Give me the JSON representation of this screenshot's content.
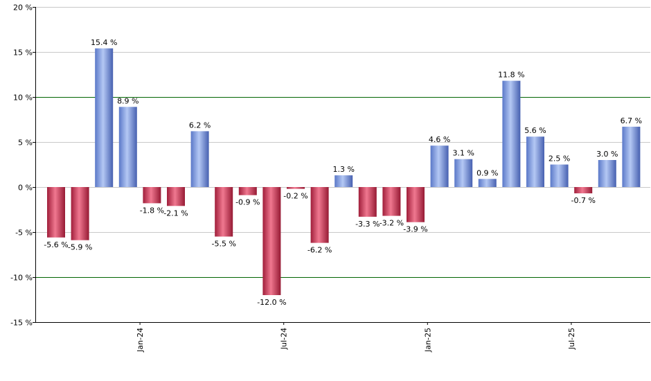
{
  "chart_data": {
    "type": "bar",
    "title": "",
    "xlabel": "",
    "ylabel": "",
    "ylim": [
      -15,
      20
    ],
    "yticks": [
      20,
      15,
      10,
      5,
      0,
      -5,
      -10,
      -15
    ],
    "y_tick_suffix": " %",
    "x_tick_labels": [
      {
        "label": "Jan-24",
        "after_index": 3
      },
      {
        "label": "Jul-24",
        "after_index": 9
      },
      {
        "label": "Jan-25",
        "after_index": 15
      },
      {
        "label": "Jul-25",
        "after_index": 21
      }
    ],
    "values": [
      -5.6,
      -5.9,
      15.4,
      8.9,
      -1.8,
      -2.1,
      6.2,
      -5.5,
      -0.9,
      -12.0,
      -0.2,
      -6.2,
      1.3,
      -3.3,
      -3.2,
      -3.9,
      4.6,
      3.1,
      0.9,
      11.8,
      5.6,
      2.5,
      -0.7,
      3.0,
      6.7
    ],
    "value_labels": [
      "-5.6 %",
      "-5.9 %",
      "15.4 %",
      "8.9 %",
      "-1.8 %",
      "-2.1 %",
      "6.2 %",
      "-5.5 %",
      "-0.9 %",
      "-12.0 %",
      "-0.2 %",
      "-6.2 %",
      "1.3 %",
      "-3.3 %",
      "-3.2 %",
      "-3.9 %",
      "4.6 %",
      "3.1 %",
      "0.9 %",
      "11.8 %",
      "5.6 %",
      "2.5 %",
      "-0.7 %",
      "3.0 %",
      "6.7 %"
    ],
    "grid": true,
    "highlight_gridlines": [
      10,
      -10
    ],
    "colors": {
      "positive": "#7a96dc",
      "negative": "#c8324a",
      "grid": "#c8c8c8",
      "highlight_grid": "#006400",
      "axis": "#000000"
    }
  }
}
